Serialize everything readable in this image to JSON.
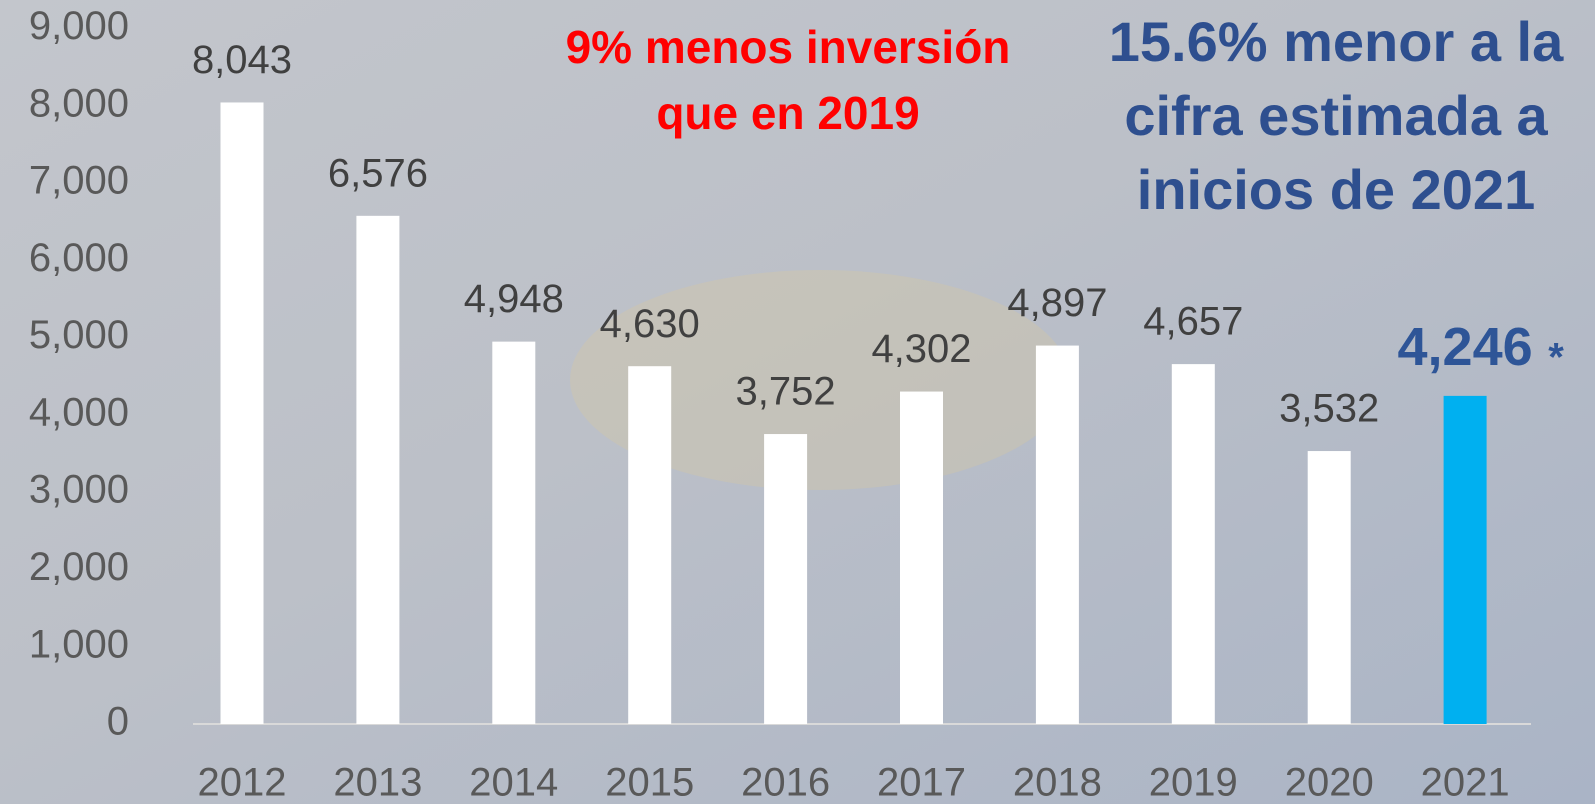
{
  "chart_data": {
    "type": "bar",
    "categories": [
      "2012",
      "2013",
      "2014",
      "2015",
      "2016",
      "2017",
      "2018",
      "2019",
      "2020",
      "2021"
    ],
    "values": [
      8043,
      6576,
      4948,
      4630,
      3752,
      4302,
      4897,
      4657,
      3532,
      4246
    ],
    "value_labels": [
      "8,043",
      "6,576",
      "4,948",
      "4,630",
      "3,752",
      "4,302",
      "4,897",
      "4,657",
      "3,532",
      "4,246"
    ],
    "colors": [
      "#ffffff",
      "#ffffff",
      "#ffffff",
      "#ffffff",
      "#ffffff",
      "#ffffff",
      "#ffffff",
      "#ffffff",
      "#ffffff",
      "#00b0f0"
    ],
    "ylim": [
      0,
      9000
    ],
    "yticks": [
      0,
      {
        "value": 1000,
        "label": "1,000"
      },
      {
        "value": 2000,
        "label": "2,000"
      },
      {
        "value": 3000,
        "label": "3,000"
      },
      {
        "value": 4000,
        "label": "4,000"
      },
      {
        "value": 5000,
        "label": "5,000"
      },
      {
        "value": 6000,
        "label": "6,000"
      },
      {
        "value": 7000,
        "label": "7,000"
      },
      {
        "value": 8000,
        "label": "8,000"
      },
      {
        "value": 9000,
        "label": "9,000"
      }
    ],
    "highlight_mark": "*",
    "annotations": [
      {
        "lines": [
          "9% menos inversión",
          "que en 2019"
        ],
        "color": "#ff0000"
      },
      {
        "lines": [
          "15.6% menor a la",
          "cifra estimada a",
          "inicios de 2021"
        ],
        "color": "#2e4f8f"
      }
    ]
  }
}
